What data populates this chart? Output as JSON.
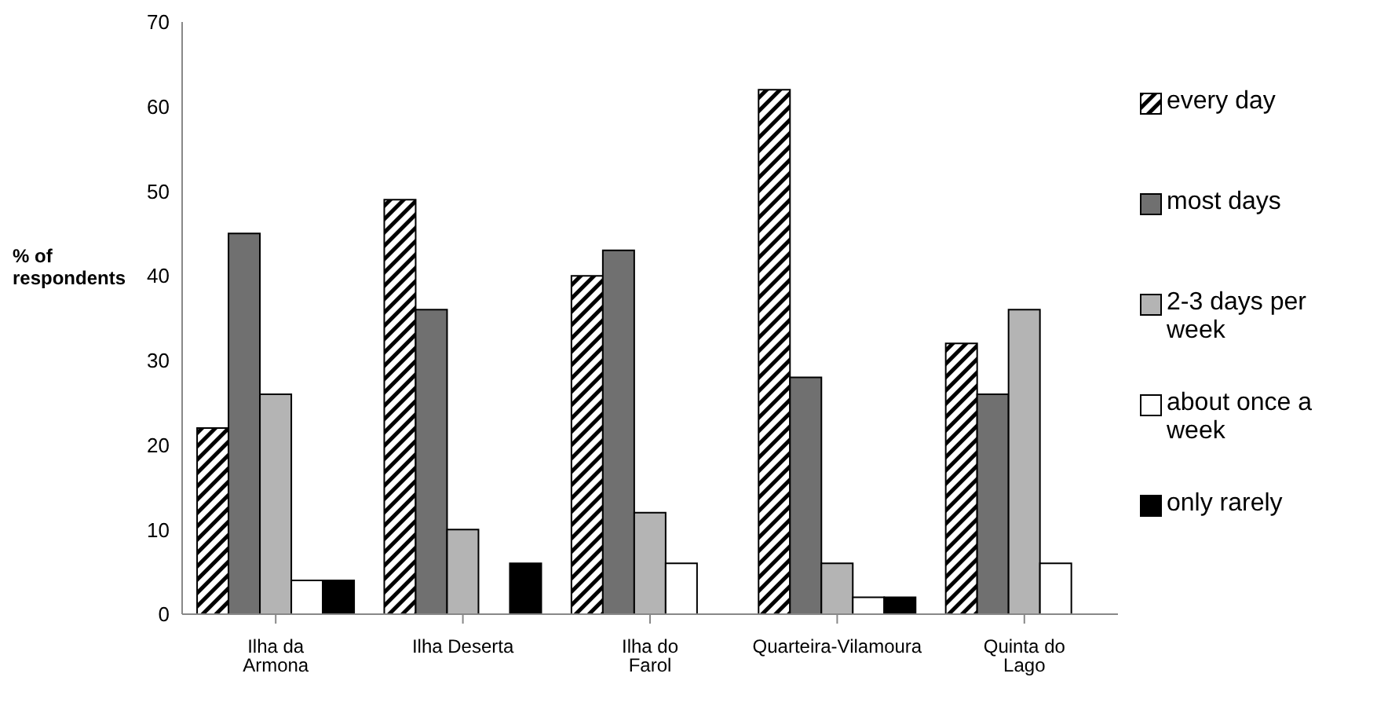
{
  "chart_data": {
    "type": "bar",
    "ylabel": "% of respondents",
    "categories": [
      "Ilha da Armona",
      "Ilha Deserta",
      "Ilha do Farol",
      "Quarteira-Vilamoura",
      "Quinta do Lago"
    ],
    "series": [
      {
        "name": "every day",
        "color": "#000000",
        "values": [
          22,
          49,
          40,
          62,
          32
        ]
      },
      {
        "name": "most days",
        "color": "#707070",
        "values": [
          45,
          36,
          43,
          28,
          26
        ]
      },
      {
        "name": "2-3 days per week",
        "color": "#b4b4b4",
        "values": [
          26,
          10,
          12,
          6,
          36
        ]
      },
      {
        "name": "about once a week",
        "color": "#ffffff",
        "values": [
          4,
          0,
          6,
          2,
          6
        ]
      },
      {
        "name": "only rarely",
        "color": "#000000",
        "values": [
          4,
          6,
          0,
          2,
          0
        ]
      }
    ],
    "ylim": [
      0,
      70
    ],
    "yticks": [
      0,
      10,
      20,
      30,
      40,
      50,
      60,
      70
    ],
    "grid": false,
    "legend": "right"
  }
}
